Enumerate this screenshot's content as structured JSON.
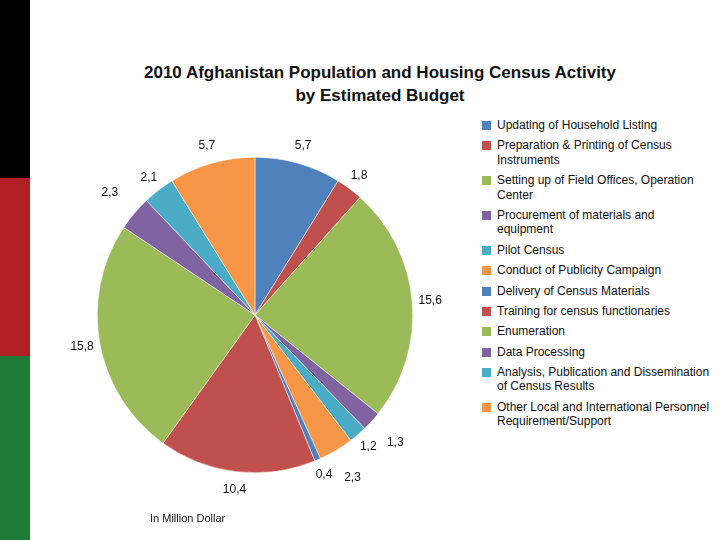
{
  "chart_data": {
    "type": "pie",
    "title": "2010 Afghanistan Population and Housing Census Activity by Estimated Budget",
    "annotation": "In Million Dollar",
    "categories": [
      "Updating of Household Listing",
      "Preparation & Printing of Census Instruments",
      "Setting up of Field Offices, Operation Center",
      "Procurement of materials and equipment",
      "Pilot Census",
      "Conduct of Publicity Campaign",
      "Delivery of Census Materials",
      "Training for census functionaries",
      "Enumeration",
      "Data Processing",
      "Analysis, Publication and Dissemination of Census Results",
      "Other Local and International Personnel Requirement/Support"
    ],
    "values": [
      5.7,
      1.8,
      15.6,
      1.3,
      1.2,
      2.3,
      0.4,
      10.4,
      15.8,
      2.3,
      2.1,
      5.7
    ],
    "value_labels": [
      "5,7",
      "1,8",
      "15,6",
      "1,3",
      "1,2",
      "2,3",
      "0,4",
      "10,4",
      "15,8",
      "2,3",
      "2,1",
      "5,7"
    ],
    "colors": [
      "#4f81bd",
      "#c0504d",
      "#9bbb59",
      "#8064a2",
      "#4bacc6",
      "#f79646",
      "#4f81bd",
      "#c0504d",
      "#9bbb59",
      "#8064a2",
      "#4bacc6",
      "#f79646"
    ],
    "data_labels": true,
    "legend": "right"
  }
}
